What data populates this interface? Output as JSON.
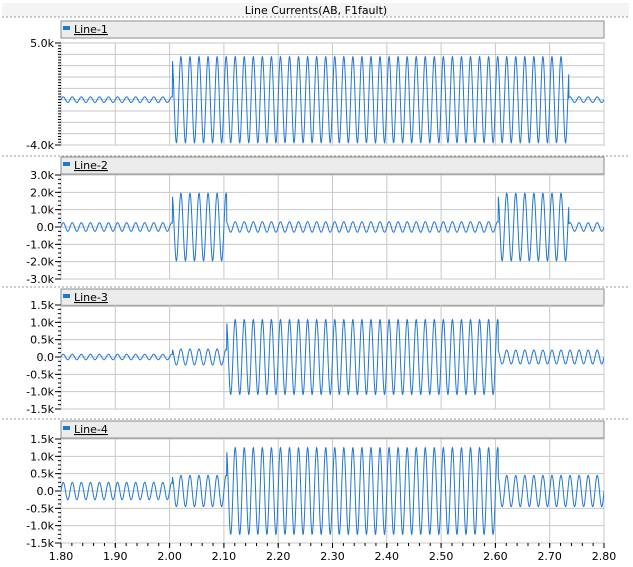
{
  "title": "Line Currents(AB, F1fault)",
  "colors": {
    "trace": "#1f77d4",
    "grid": "#c8c8c8",
    "frame": "#8c8c8c",
    "legend_bg": "#ececec",
    "panel_bg": "#ffffff"
  },
  "xaxis": {
    "ticks": [
      "1.80",
      "1.90",
      "2.00",
      "2.10",
      "2.20",
      "2.30",
      "2.40",
      "2.50",
      "2.60",
      "2.70",
      "2.80"
    ],
    "range": [
      1.8,
      2.8
    ]
  },
  "chart_data": [
    {
      "type": "line",
      "legend": "Line-1",
      "ylim": [
        -4000,
        5000
      ],
      "yticks": [
        "5.0k",
        "-4.0k"
      ],
      "ytick_values": [
        5000,
        -4000
      ],
      "frequency_hz": 60,
      "segments": [
        {
          "x_start": 1.8,
          "x_end": 2.005,
          "amplitude": 250,
          "offset": 0
        },
        {
          "x_start": 2.005,
          "x_end": 2.735,
          "amplitude": 3800,
          "offset": 0
        },
        {
          "x_start": 2.735,
          "x_end": 2.8,
          "amplitude": 250,
          "offset": 0
        }
      ]
    },
    {
      "type": "line",
      "legend": "Line-2",
      "ylim": [
        -3000,
        3000
      ],
      "yticks": [
        "3.0k",
        "2.0k",
        "1.0k",
        "0.0",
        "-1.0k",
        "-2.0k",
        "-3.0k"
      ],
      "ytick_values": [
        3000,
        2000,
        1000,
        0,
        -1000,
        -2000,
        -3000
      ],
      "frequency_hz": 60,
      "segments": [
        {
          "x_start": 1.8,
          "x_end": 2.005,
          "amplitude": 250,
          "offset": 0
        },
        {
          "x_start": 2.005,
          "x_end": 2.105,
          "amplitude": 1950,
          "offset": 0
        },
        {
          "x_start": 2.105,
          "x_end": 2.605,
          "amplitude": 300,
          "offset": 0
        },
        {
          "x_start": 2.605,
          "x_end": 2.735,
          "amplitude": 1950,
          "offset": 0
        },
        {
          "x_start": 2.735,
          "x_end": 2.8,
          "amplitude": 250,
          "offset": 0
        }
      ]
    },
    {
      "type": "line",
      "legend": "Line-3",
      "ylim": [
        -1500,
        1500
      ],
      "yticks": [
        "1.5k",
        "1.0k",
        "0.5k",
        "0.0",
        "-0.5k",
        "-1.0k",
        "-1.5k"
      ],
      "ytick_values": [
        1500,
        1000,
        500,
        0,
        -500,
        -1000,
        -1500
      ],
      "frequency_hz": 60,
      "segments": [
        {
          "x_start": 1.8,
          "x_end": 2.005,
          "amplitude": 80,
          "offset": 0
        },
        {
          "x_start": 2.005,
          "x_end": 2.105,
          "amplitude": 230,
          "offset": 0
        },
        {
          "x_start": 2.105,
          "x_end": 2.605,
          "amplitude": 1080,
          "offset": 0
        },
        {
          "x_start": 2.605,
          "x_end": 2.8,
          "amplitude": 200,
          "offset": 0
        }
      ]
    },
    {
      "type": "line",
      "legend": "Line-4",
      "ylim": [
        -1500,
        1500
      ],
      "yticks": [
        "1.5k",
        "1.0k",
        "0.5k",
        "0.0",
        "-0.5k",
        "-1.0k",
        "-1.5k"
      ],
      "ytick_values": [
        1500,
        1000,
        500,
        0,
        -500,
        -1000,
        -1500
      ],
      "frequency_hz": 60,
      "segments": [
        {
          "x_start": 1.8,
          "x_end": 2.005,
          "amplitude": 250,
          "offset": 0
        },
        {
          "x_start": 2.005,
          "x_end": 2.105,
          "amplitude": 450,
          "offset": 0
        },
        {
          "x_start": 2.105,
          "x_end": 2.605,
          "amplitude": 1250,
          "offset": 0
        },
        {
          "x_start": 2.605,
          "x_end": 2.8,
          "amplitude": 450,
          "offset": 0
        }
      ]
    }
  ]
}
